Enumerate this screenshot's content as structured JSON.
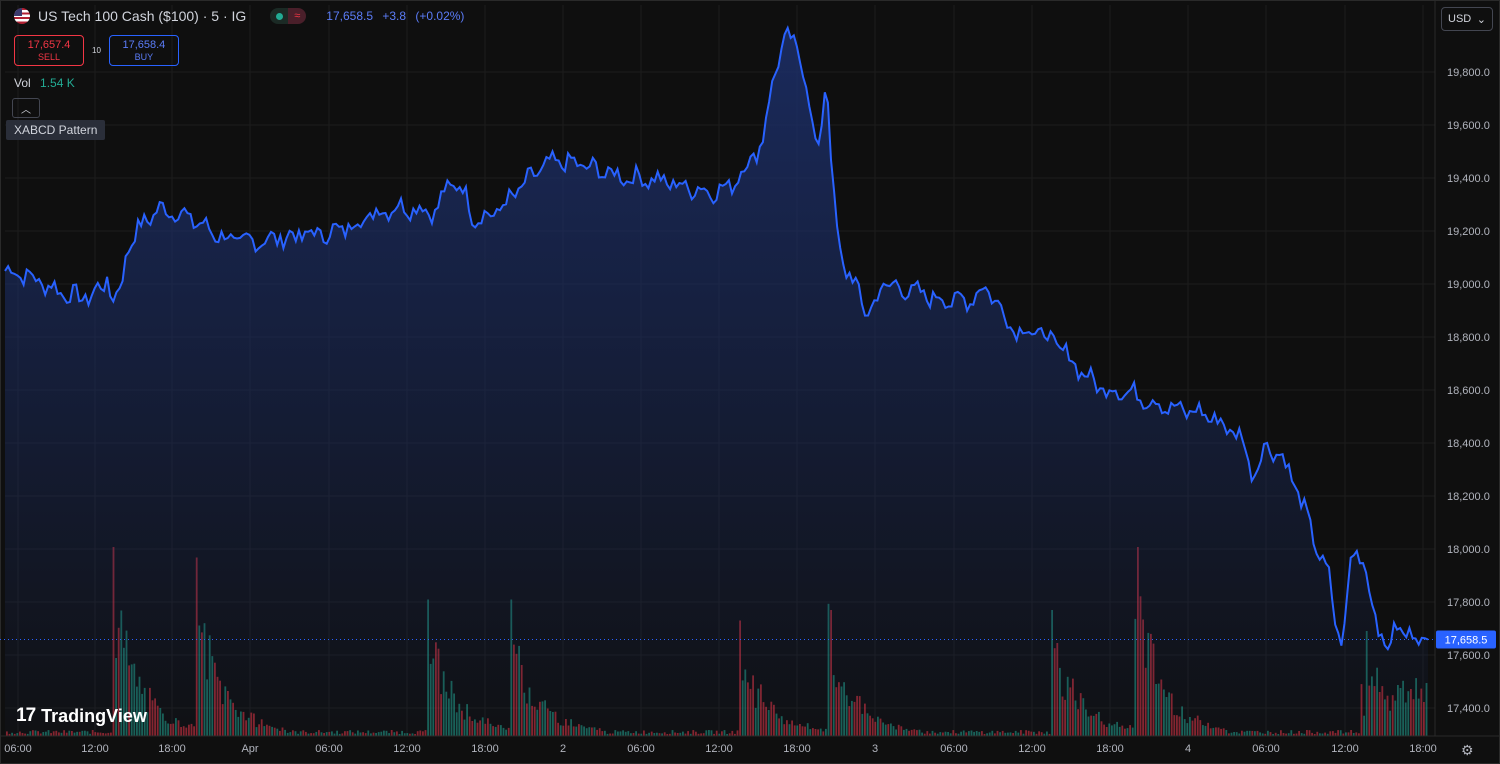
{
  "header": {
    "symbol_title": "US Tech 100 Cash ($100) · 5 · IG",
    "last_price": "17,658.5",
    "change": "+3.8",
    "change_pct": "(+0.02%)"
  },
  "trade": {
    "sell_price": "17,657.4",
    "sell_label": "SELL",
    "spread": "10",
    "buy_price": "17,658.4",
    "buy_label": "BUY"
  },
  "volume": {
    "label": "Vol",
    "value": "1.54 K"
  },
  "indicator": {
    "name": "XABCD Pattern"
  },
  "currency": {
    "value": "USD"
  },
  "watermark": {
    "text": "TradingView"
  },
  "price_axis": {
    "ticks": [
      "19,800.0",
      "19,600.0",
      "19,400.0",
      "19,200.0",
      "19,000.0",
      "18,800.0",
      "18,600.0",
      "18,400.0",
      "18,200.0",
      "18,000.0",
      "17,800.0",
      "17,600.0",
      "17,400.0"
    ],
    "current_label": "17,658.5"
  },
  "time_axis": {
    "ticks": [
      "06:00",
      "12:00",
      "18:00",
      "Apr",
      "06:00",
      "12:00",
      "18:00",
      "2",
      "06:00",
      "12:00",
      "18:00",
      "3",
      "06:00",
      "12:00",
      "18:00",
      "4",
      "06:00",
      "12:00",
      "18:00"
    ]
  },
  "colors": {
    "line": "#2962ff",
    "area_top": "#1c2f6a",
    "up": "#22ab94",
    "down": "#f23645",
    "background": "#0f0f0f"
  },
  "chart_data": {
    "type": "area",
    "y_range": [
      17300,
      19850
    ],
    "x": [
      "Mar31 06:00",
      "Mar31 12:00",
      "Mar31 18:00",
      "Apr1 00:00",
      "Apr1 06:00",
      "Apr1 12:00",
      "Apr1 18:00",
      "Apr2 00:00",
      "Apr2 06:00",
      "Apr2 12:00",
      "Apr2 18:00",
      "Apr3 00:00",
      "Apr3 06:00",
      "Apr3 12:00",
      "Apr3 18:00",
      "Apr4 00:00",
      "Apr4 06:00",
      "Apr4 12:00",
      "Apr4 18:00"
    ],
    "series": [
      {
        "values": [
          19050,
          18950,
          19280,
          19160,
          19190,
          19290,
          19250,
          19460,
          19400,
          19350,
          19650,
          19000,
          18940,
          18820,
          18600,
          18520,
          18380,
          17800,
          17658.5
        ]
      }
    ],
    "volume_spikes": [
      {
        "x": "Mar31 12:00",
        "value": 1.8
      },
      {
        "x": "Mar31 18:00",
        "value": 1.7
      },
      {
        "x": "Apr1 12:00",
        "value": 1.3
      },
      {
        "x": "Apr1 18:00",
        "value": 1.3
      },
      {
        "x": "Apr2 12:00",
        "value": 1.1
      },
      {
        "x": "Apr2 18:00",
        "value": 1.2
      },
      {
        "x": "Apr3 12:00",
        "value": 1.2
      },
      {
        "x": "Apr3 18:00",
        "value": 1.8
      },
      {
        "x": "Apr4 12:00",
        "value": 1.0
      }
    ]
  }
}
